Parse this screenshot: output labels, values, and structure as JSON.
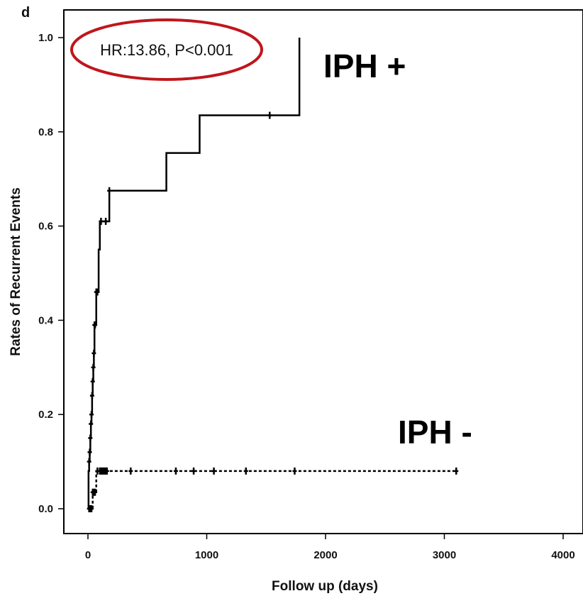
{
  "chart_data": {
    "type": "line",
    "panel_label": "d",
    "xlabel": "Follow up (days)",
    "ylabel": "Rates of Recurrent Events",
    "xlim": [
      -100,
      4100
    ],
    "ylim": [
      -0.05,
      1.05
    ],
    "x_ticks": [
      0,
      1000,
      2000,
      3000,
      4000
    ],
    "y_ticks": [
      0.0,
      0.2,
      0.4,
      0.6,
      0.8,
      1.0
    ],
    "y_tick_labels": [
      "0.0",
      "0.2",
      "0.4",
      "0.6",
      "0.8",
      "1.0"
    ],
    "grid": false,
    "annotation": {
      "text": "HR:13.86, P<0.001",
      "highlight_color": "#c0161c"
    },
    "series": [
      {
        "name": "IPH +",
        "style": "solid",
        "color": "#000000",
        "x": [
          0,
          5,
          10,
          15,
          20,
          25,
          30,
          35,
          40,
          45,
          50,
          55,
          60,
          70,
          80,
          90,
          100,
          110,
          150,
          180,
          660,
          940,
          1780,
          1780
        ],
        "y": [
          0.0,
          0.08,
          0.1,
          0.12,
          0.15,
          0.18,
          0.2,
          0.24,
          0.27,
          0.3,
          0.33,
          0.39,
          0.39,
          0.46,
          0.46,
          0.55,
          0.61,
          0.61,
          0.61,
          0.675,
          0.755,
          0.835,
          0.835,
          1.0
        ],
        "censored_x": [
          10,
          15,
          20,
          25,
          30,
          35,
          40,
          45,
          50,
          55,
          60,
          70,
          80,
          110,
          150,
          180,
          1530
        ],
        "censored_y": [
          0.1,
          0.12,
          0.15,
          0.18,
          0.2,
          0.24,
          0.27,
          0.3,
          0.33,
          0.39,
          0.39,
          0.46,
          0.46,
          0.61,
          0.61,
          0.675,
          0.835
        ]
      },
      {
        "name": "IPH -",
        "style": "dashed",
        "color": "#000000",
        "x": [
          0,
          20,
          30,
          40,
          50,
          60,
          70,
          80,
          3100
        ],
        "y": [
          0.0,
          0.0,
          0.0,
          0.035,
          0.035,
          0.035,
          0.08,
          0.08,
          0.08
        ],
        "censored_x": [
          10,
          20,
          30,
          40,
          50,
          60,
          80,
          100,
          110,
          120,
          130,
          140,
          150,
          160,
          360,
          740,
          890,
          1060,
          1330,
          1740,
          3100
        ],
        "censored_y": [
          0.0,
          0.0,
          0.0,
          0.035,
          0.035,
          0.035,
          0.08,
          0.08,
          0.08,
          0.08,
          0.08,
          0.08,
          0.08,
          0.08,
          0.08,
          0.08,
          0.08,
          0.08,
          0.08,
          0.08,
          0.08
        ]
      }
    ]
  }
}
